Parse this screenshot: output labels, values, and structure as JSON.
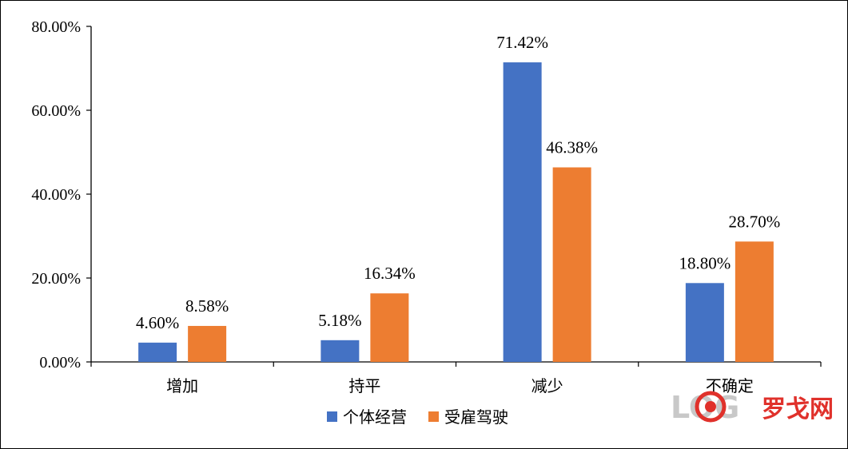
{
  "chart_data": {
    "type": "bar",
    "categories": [
      "增加",
      "持平",
      "减少",
      "不确定"
    ],
    "series": [
      {
        "name": "个体经营",
        "values": [
          4.6,
          5.18,
          71.42,
          18.8
        ],
        "labels": [
          "4.60%",
          "5.18%",
          "71.42%",
          "18.80%"
        ],
        "color": "#4472c4"
      },
      {
        "name": "受雇驾驶",
        "values": [
          8.58,
          16.34,
          46.38,
          28.7
        ],
        "labels": [
          "8.58%",
          "16.34%",
          "46.38%",
          "28.70%"
        ],
        "color": "#ed7d31"
      }
    ],
    "yticks": [
      "0.00%",
      "20.00%",
      "40.00%",
      "60.00%",
      "80.00%"
    ],
    "ylim": [
      0,
      80
    ],
    "grid": false,
    "legend": "bottom"
  },
  "watermark": {
    "latin": "LOG",
    "cn": "罗戈网"
  }
}
